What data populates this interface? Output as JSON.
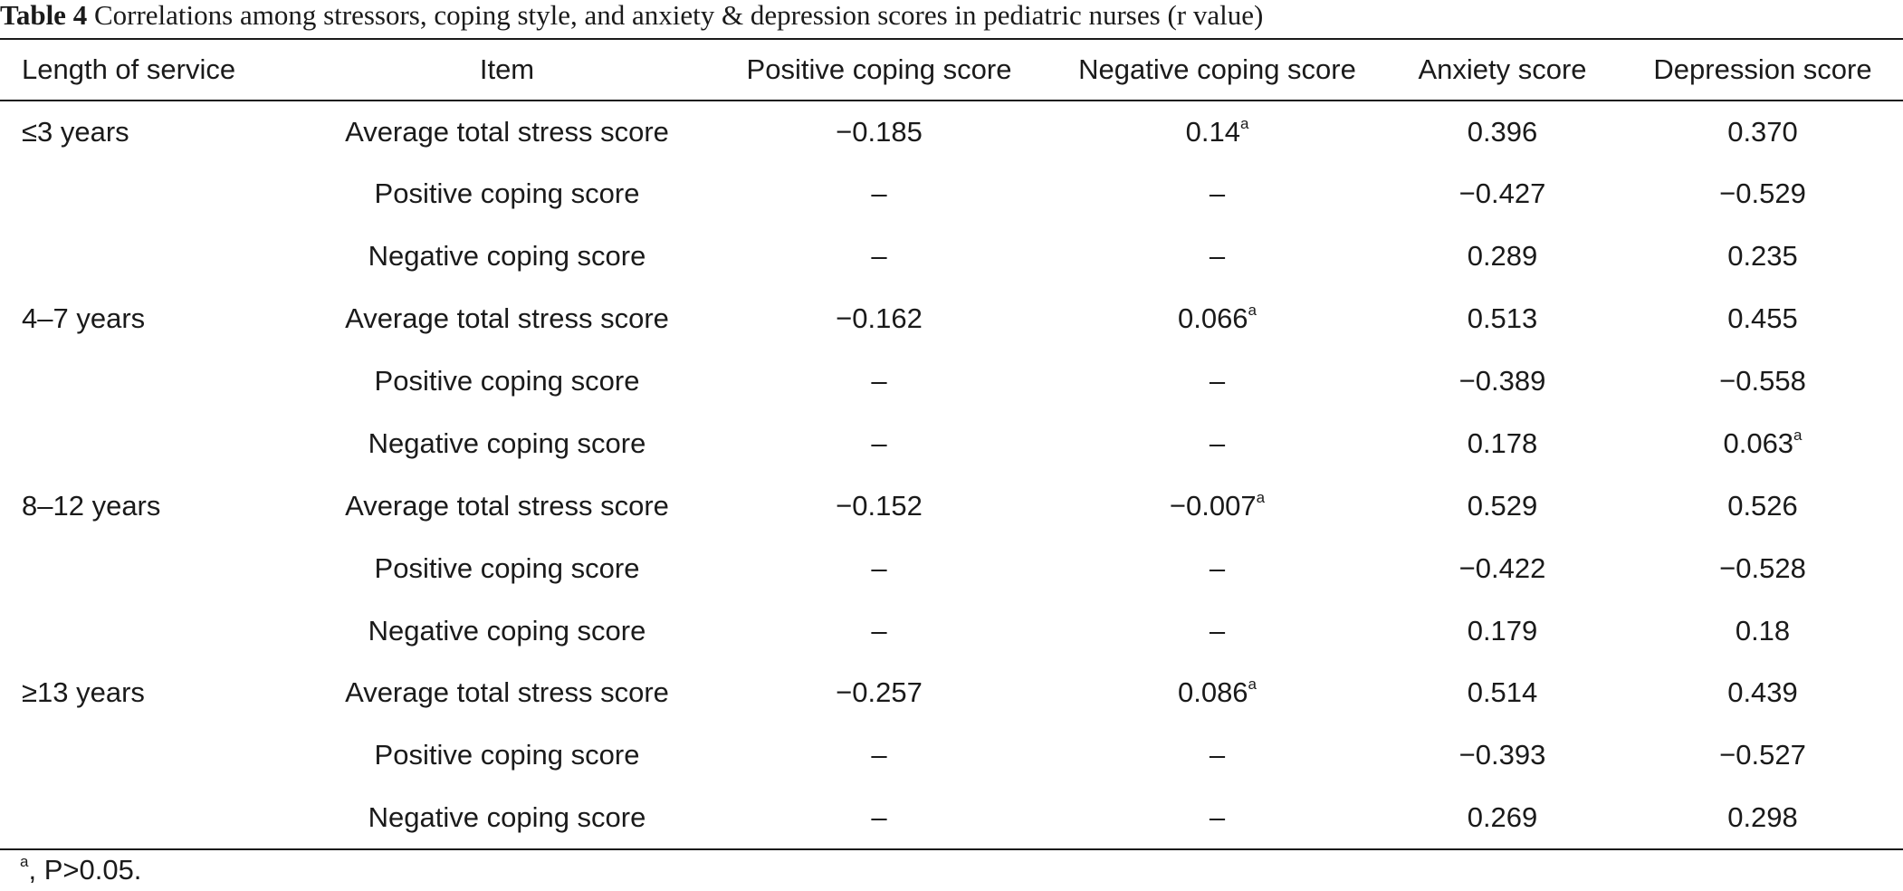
{
  "caption": {
    "label": "Table 4",
    "text": "Correlations among stressors, coping style, and anxiety & depression scores in pediatric nurses (r value)"
  },
  "table": {
    "headers": [
      "Length of service",
      "Item",
      "Positive coping score",
      "Negative coping score",
      "Anxiety score",
      "Depression score"
    ],
    "rows": [
      {
        "service": "≤3 years",
        "item": "Average total stress score",
        "positive": "−0.185",
        "negative": "0.14",
        "negative_sup": "a",
        "anxiety": "0.396",
        "depression": "0.370",
        "depression_sup": ""
      },
      {
        "service": "",
        "item": "Positive coping score",
        "positive": "–",
        "negative": "–",
        "negative_sup": "",
        "anxiety": "−0.427",
        "depression": "−0.529",
        "depression_sup": ""
      },
      {
        "service": "",
        "item": "Negative coping score",
        "positive": "–",
        "negative": "–",
        "negative_sup": "",
        "anxiety": "0.289",
        "depression": "0.235",
        "depression_sup": ""
      },
      {
        "service": "4–7 years",
        "item": "Average total stress score",
        "positive": "−0.162",
        "negative": "0.066",
        "negative_sup": "a",
        "anxiety": "0.513",
        "depression": "0.455",
        "depression_sup": ""
      },
      {
        "service": "",
        "item": "Positive coping score",
        "positive": "–",
        "negative": "–",
        "negative_sup": "",
        "anxiety": "−0.389",
        "depression": "−0.558",
        "depression_sup": ""
      },
      {
        "service": "",
        "item": "Negative coping score",
        "positive": "–",
        "negative": "–",
        "negative_sup": "",
        "anxiety": "0.178",
        "depression": "0.063",
        "depression_sup": "a"
      },
      {
        "service": "8–12 years",
        "item": "Average total stress score",
        "positive": "−0.152",
        "negative": "−0.007",
        "negative_sup": "a",
        "anxiety": "0.529",
        "depression": "0.526",
        "depression_sup": ""
      },
      {
        "service": "",
        "item": "Positive coping score",
        "positive": "–",
        "negative": "–",
        "negative_sup": "",
        "anxiety": "−0.422",
        "depression": "−0.528",
        "depression_sup": ""
      },
      {
        "service": "",
        "item": "Negative coping score",
        "positive": "–",
        "negative": "–",
        "negative_sup": "",
        "anxiety": "0.179",
        "depression": "0.18",
        "depression_sup": ""
      },
      {
        "service": "≥13 years",
        "item": "Average total stress score",
        "positive": "−0.257",
        "negative": "0.086",
        "negative_sup": "a",
        "anxiety": "0.514",
        "depression": "0.439",
        "depression_sup": ""
      },
      {
        "service": "",
        "item": "Positive coping score",
        "positive": "–",
        "negative": "–",
        "negative_sup": "",
        "anxiety": "−0.393",
        "depression": "−0.527",
        "depression_sup": ""
      },
      {
        "service": "",
        "item": "Negative coping score",
        "positive": "–",
        "negative": "–",
        "negative_sup": "",
        "anxiety": "0.269",
        "depression": "0.298",
        "depression_sup": ""
      }
    ]
  },
  "footnote": {
    "marker": "a",
    "text": ", P>0.05."
  }
}
